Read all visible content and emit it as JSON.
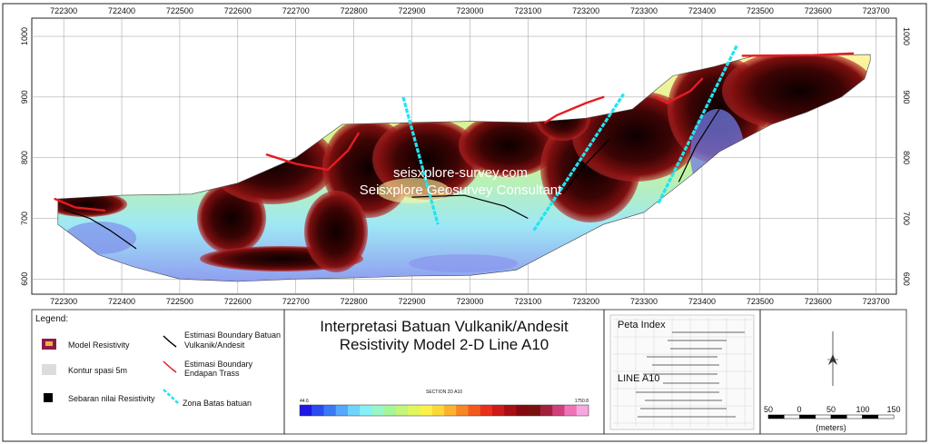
{
  "chart_data": {
    "type": "heatmap",
    "title": "Interpretasi Batuan Vulkanik/Andesit",
    "subtitle": "Resistivity Model 2-D Line A10",
    "x_ticks": [
      "722300",
      "722400",
      "722500",
      "722600",
      "722700",
      "722800",
      "722900",
      "723000",
      "723100",
      "723200",
      "723300",
      "723400",
      "723500",
      "723600",
      "723700"
    ],
    "y_ticks": [
      "1000",
      "900",
      "800",
      "700",
      "600"
    ],
    "xlim": [
      722245,
      723735
    ],
    "ylim": [
      575,
      1030
    ],
    "watermark": [
      "seisxplore-survey.com",
      "Seisxplore Geosurvey Consultant"
    ],
    "profile_top": [
      [
        722290,
        732
      ],
      [
        722400,
        738
      ],
      [
        722520,
        740
      ],
      [
        722600,
        758
      ],
      [
        722700,
        800
      ],
      [
        722780,
        855
      ],
      [
        722900,
        858
      ],
      [
        723000,
        860
      ],
      [
        723100,
        858
      ],
      [
        723200,
        865
      ],
      [
        723280,
        880
      ],
      [
        723350,
        935
      ],
      [
        723420,
        950
      ],
      [
        723490,
        968
      ],
      [
        723690,
        970
      ]
    ],
    "profile_bottom": [
      [
        722290,
        690
      ],
      [
        722360,
        640
      ],
      [
        722420,
        620
      ],
      [
        722500,
        600
      ],
      [
        722600,
        596
      ],
      [
        722700,
        600
      ],
      [
        722800,
        602
      ],
      [
        722900,
        605
      ],
      [
        723000,
        606
      ],
      [
        723080,
        615
      ],
      [
        723150,
        650
      ],
      [
        723230,
        690
      ],
      [
        723300,
        710
      ],
      [
        723380,
        770
      ],
      [
        723430,
        810
      ],
      [
        723470,
        830
      ],
      [
        723520,
        855
      ],
      [
        723580,
        875
      ],
      [
        723640,
        900
      ],
      [
        723680,
        930
      ],
      [
        723690,
        960
      ]
    ],
    "cyan_lines": [
      [
        [
          722885,
          900
        ],
        [
          722945,
          690
        ]
      ],
      [
        [
          723110,
          680
        ],
        [
          723265,
          905
        ]
      ],
      [
        [
          723325,
          725
        ],
        [
          723460,
          985
        ]
      ]
    ],
    "red_curves": [
      [
        [
          722285,
          732
        ],
        [
          722320,
          718
        ],
        [
          722370,
          713
        ]
      ],
      [
        [
          722650,
          805
        ],
        [
          722700,
          790
        ],
        [
          722755,
          780
        ],
        [
          722790,
          812
        ],
        [
          722808,
          840
        ]
      ],
      [
        [
          723130,
          858
        ],
        [
          723150,
          870
        ],
        [
          723200,
          890
        ],
        [
          723230,
          900
        ]
      ],
      [
        [
          723320,
          900
        ],
        [
          723340,
          890
        ],
        [
          723380,
          910
        ],
        [
          723400,
          930
        ]
      ],
      [
        [
          723470,
          968
        ],
        [
          723590,
          969
        ],
        [
          723660,
          972
        ]
      ]
    ],
    "black_boundaries": [
      [
        [
          722900,
          735
        ],
        [
          722990,
          738
        ],
        [
          723060,
          720
        ],
        [
          723100,
          700
        ]
      ],
      [
        [
          723160,
          740
        ],
        [
          723200,
          790
        ],
        [
          723240,
          830
        ]
      ],
      [
        [
          723360,
          760
        ],
        [
          723390,
          820
        ],
        [
          723430,
          880
        ]
      ],
      [
        [
          722300,
          715
        ],
        [
          722345,
          700
        ],
        [
          722380,
          680
        ],
        [
          722425,
          650
        ]
      ]
    ],
    "section_label": "SECTION 2D A10",
    "colorbar": {
      "label_min": "44.6",
      "label_max": "1750.8",
      "colors": [
        "#1d18e6",
        "#2b4cf0",
        "#3a7af6",
        "#55a8fb",
        "#6fd4fd",
        "#86f0f4",
        "#98f7c8",
        "#a6f59a",
        "#c3f57a",
        "#e2f65c",
        "#fbf249",
        "#fcd83a",
        "#fcb22d",
        "#f98625",
        "#f45a1f",
        "#e8301c",
        "#cc1a1a",
        "#a80f14",
        "#850911",
        "#7a1111",
        "#a3203d",
        "#d0407a",
        "#ee74b6",
        "#f8a8e0"
      ]
    },
    "scale_bar": {
      "ticks": [
        "50",
        "0",
        "50",
        "100",
        "150"
      ],
      "unit": "(meters)"
    }
  },
  "legend": {
    "heading": "Legend:",
    "items": [
      {
        "label": "Model Resistivity"
      },
      {
        "label": "Kontur spasi 5m"
      },
      {
        "label": "Sebaran nilai Resistivity"
      }
    ],
    "boundary_items": [
      {
        "lines": [
          "Estimasi Boundary Batuan",
          "Vulkanik/Andesit"
        ]
      },
      {
        "lines": [
          "Estimasi Boundary",
          "Endapan Trass"
        ]
      },
      {
        "lines": [
          "Zona Batas batuan"
        ]
      }
    ]
  },
  "index_map": {
    "title": "Peta Index",
    "line_label": "LINE A10"
  },
  "colors": {
    "dark": "#1a0303",
    "maroon": "#7e0f0f",
    "red_line": "#e41c22",
    "cyan_line": "#22e4f0",
    "grid": "#999999"
  }
}
